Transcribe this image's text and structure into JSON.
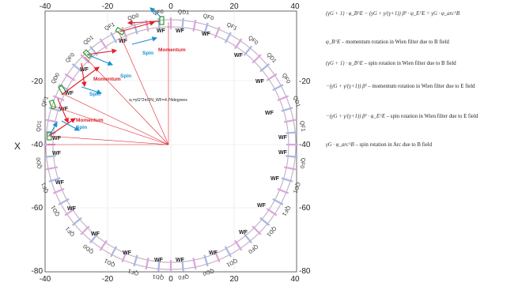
{
  "axes": {
    "x_ticks": [
      "-40",
      "-20",
      "0",
      "20",
      "40"
    ],
    "y_ticks": [
      "-20",
      "-40",
      "-60",
      "-80"
    ],
    "y_label": "X"
  },
  "ring": {
    "labels_top": [
      "QD1",
      "QF1",
      "QD0",
      "QF0",
      "QD1",
      "QF1",
      "QD0",
      "QF0",
      "QD1",
      "QF0",
      "QF1",
      "QF0",
      "QD1",
      "QF0",
      "QD1",
      "QF1"
    ],
    "labels_bottom": [
      "QF0",
      "QD1",
      "QF1",
      "QD1",
      "QF0",
      "QD1",
      "QD0",
      "QF0",
      "QD1",
      "QF1",
      "QD1",
      "QD0",
      "QF1",
      "QD1",
      "QF1",
      "QD0"
    ],
    "wf_label": "WF"
  },
  "annotations": {
    "momentum": "Momentum",
    "spin": "Spin",
    "formula": "α₁=γG*2π/2N_WF=4.74degrees"
  },
  "colors": {
    "momentum": "#e0202a",
    "spin": "#1a8fd0",
    "wien_filter": "#2aa02a",
    "ring": "#c9b2c9"
  },
  "equations": {
    "eq1_math": "(γG + 1) · φ_B^E − (γG + γ/(γ+1)) β² · φ_E^E = γG · φ_arc^B",
    "eq2_math": "φ_B^E",
    "eq2_text": " – momentum rotation in Wien filter due to B field",
    "eq3_math": "(γG + 1) · φ_B^E",
    "eq3_text": " – spin rotation in Wien filter due to B field",
    "eq4_math": "−(γG + γ/(γ+1)) β² ",
    "eq4_text": " – momentum rotation in Wien filter due to E field",
    "eq5_math": "−(γG + γ/(γ+1)) β² · φ_E^E",
    "eq5_text": " – spin rotation in Wien filter due to E field",
    "eq6_math": "γG · φ_arc^B",
    "eq6_text": " – spin rotation in Arc due to B field"
  }
}
